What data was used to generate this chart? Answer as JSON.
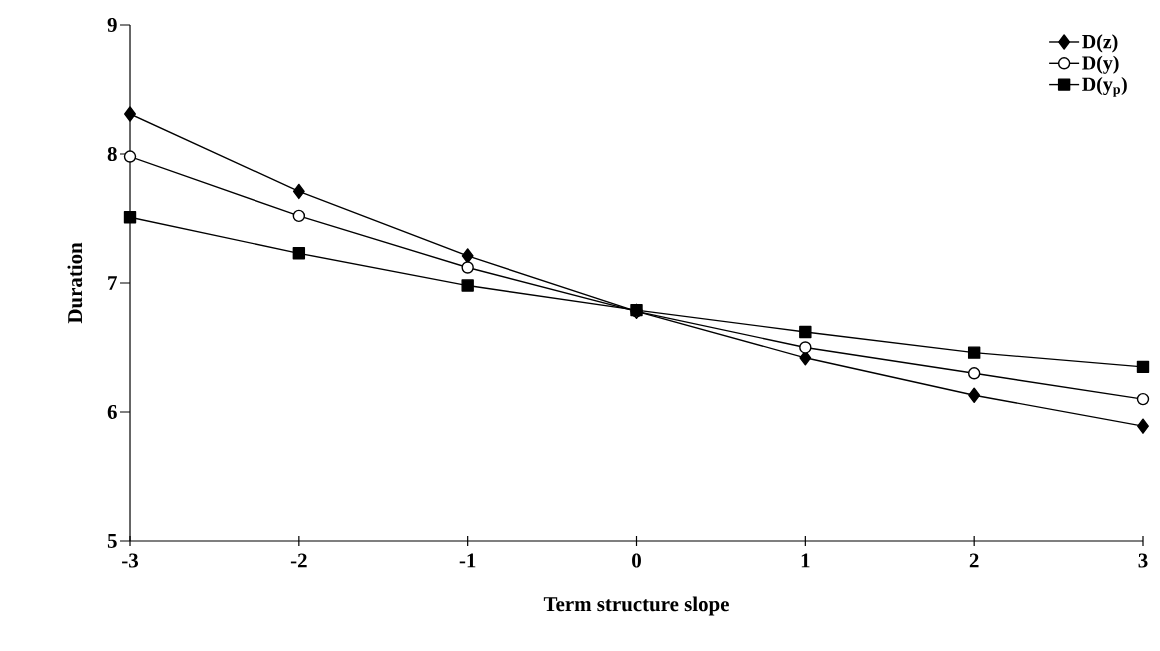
{
  "chart_data": {
    "type": "line",
    "xlabel": "Term structure slope",
    "ylabel": "Duration",
    "x": [
      -3,
      -2,
      -1,
      0,
      1,
      2,
      3
    ],
    "series": [
      {
        "name": "D(z)",
        "color": "#000000",
        "marker": "diamond",
        "values": [
          8.31,
          7.71,
          7.21,
          6.78,
          6.42,
          6.13,
          5.89
        ]
      },
      {
        "name": "D(y)",
        "color": "#000000",
        "marker": "circle",
        "values": [
          7.98,
          7.52,
          7.12,
          6.78,
          6.5,
          6.3,
          6.1
        ]
      },
      {
        "name": "D(y$_{p}$)",
        "color": "#000000",
        "marker": "square",
        "values": [
          7.51,
          7.23,
          6.98,
          6.79,
          6.62,
          6.46,
          6.35
        ]
      }
    ],
    "xlim": [
      -3,
      3
    ],
    "ylim": [
      5,
      9
    ],
    "xticks": [
      -3,
      -2,
      -1,
      0,
      1,
      2,
      3
    ],
    "yticks": [
      5,
      6,
      7,
      8,
      9
    ],
    "legend": "top right",
    "grid": false,
    "line_style": "solid"
  }
}
